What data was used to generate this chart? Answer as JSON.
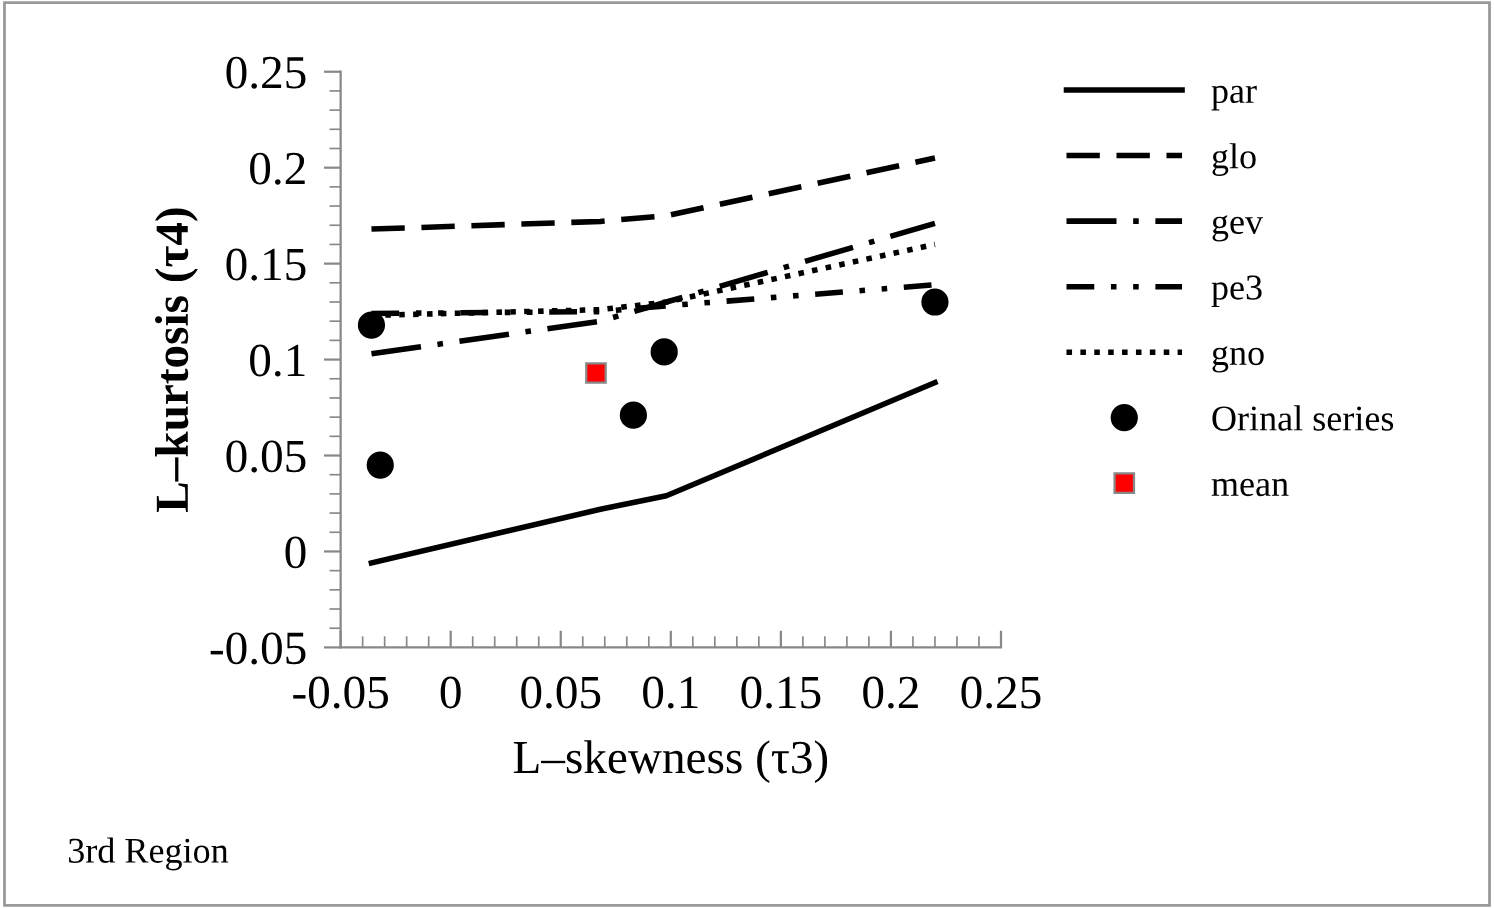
{
  "chart_data": {
    "type": "line",
    "xlabel": "L–skewness (τ3)",
    "ylabel": "L–kurtosis (τ4)",
    "annotations": [
      "3rd Region"
    ],
    "xlim": [
      -0.05,
      0.25
    ],
    "xticks": [
      -0.05,
      0,
      0.05,
      0.1,
      0.15,
      0.2,
      0.25
    ],
    "ylim": [
      -0.05,
      0.25
    ],
    "yticks": [
      -0.05,
      0,
      0.05,
      0.1,
      0.15,
      0.2,
      0.25
    ],
    "grid": false,
    "legend": "right",
    "marker": "none",
    "series": [
      {
        "name": "par",
        "color": "#000000",
        "line_style": "solid",
        "x": [
          -0.036,
          0.068,
          0.098,
          0.22
        ],
        "values": [
          -0.006,
          0.022,
          0.029,
          0.088
        ]
      },
      {
        "name": "glo",
        "color": "#000000",
        "line_style": "dashed",
        "x": [
          -0.036,
          0.068,
          0.098,
          0.22
        ],
        "values": [
          0.168,
          0.172,
          0.175,
          0.205
        ]
      },
      {
        "name": "gev",
        "color": "#000000",
        "line_style": "longdashdot",
        "x": [
          -0.036,
          0.068,
          0.098,
          0.22
        ],
        "values": [
          0.103,
          0.12,
          0.13,
          0.171
        ]
      },
      {
        "name": "pe3",
        "color": "#000000",
        "line_style": "dashdotdot",
        "x": [
          -0.036,
          0.068,
          0.098,
          0.22
        ],
        "values": [
          0.124,
          0.125,
          0.128,
          0.139
        ]
      },
      {
        "name": "gno",
        "color": "#000000",
        "line_style": "dotted",
        "x": [
          -0.036,
          0.068,
          0.098,
          0.22
        ],
        "values": [
          0.123,
          0.126,
          0.13,
          0.16
        ]
      },
      {
        "name": "Orinal series",
        "type": "scatter",
        "marker": "circle",
        "color": "#000000",
        "x": [
          -0.036,
          -0.032,
          0.083,
          0.097,
          0.22
        ],
        "values": [
          0.118,
          0.045,
          0.071,
          0.104,
          0.13
        ]
      },
      {
        "name": "mean",
        "type": "scatter",
        "marker": "square",
        "color": "#ff0000",
        "x": [
          0.066
        ],
        "values": [
          0.093
        ]
      }
    ]
  }
}
